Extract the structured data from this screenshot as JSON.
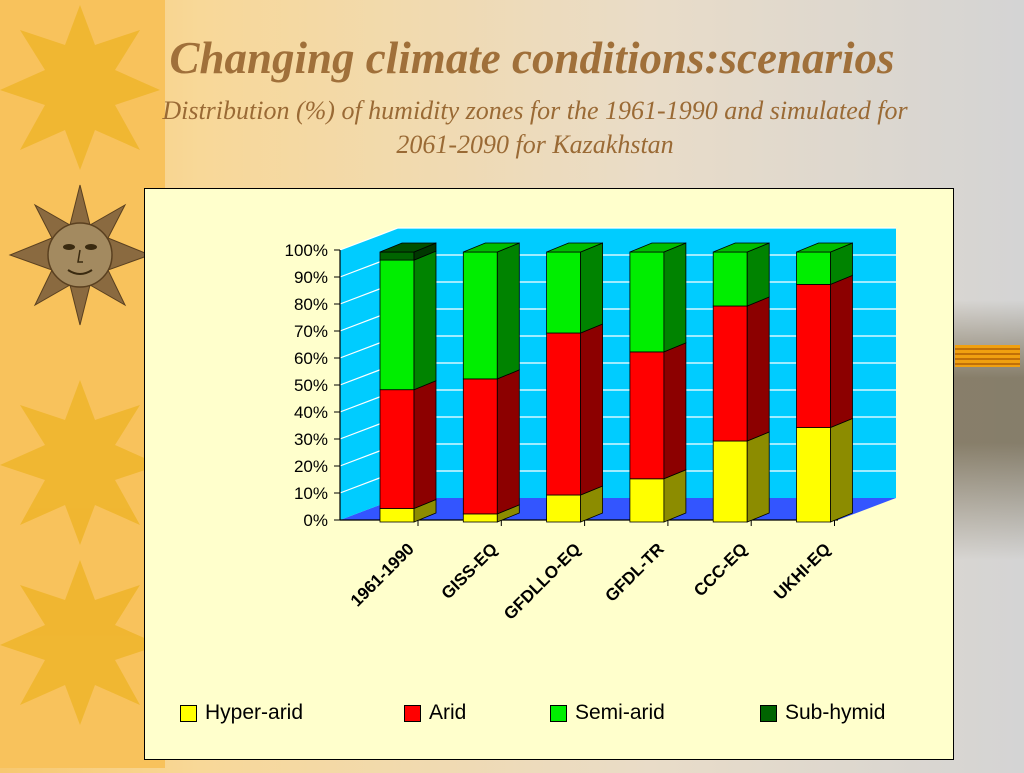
{
  "slide": {
    "title": "Changing climate conditions:scenarios",
    "subtitle_line1": "Distribution (%) of humidity zones for the 1961-1990 and simulated for",
    "subtitle_line2": "2061-2090 for Kazakhstan"
  },
  "colors": {
    "hyper_arid": "#ffff00",
    "arid": "#ff0000",
    "semi_arid": "#00ee00",
    "sub_humid": "#006400",
    "back_wall": "#00ccff",
    "floor": "#3355ff"
  },
  "chart_data": {
    "type": "bar",
    "stacked": true,
    "three_d": true,
    "categories": [
      "1961-1990",
      "GISS-EQ",
      "GFDLLO-EQ",
      "GFDL-TR",
      "CCC-EQ",
      "UKHI-EQ"
    ],
    "series": [
      {
        "name": "Hyper-arid",
        "values": [
          5,
          3,
          10,
          16,
          30,
          35
        ]
      },
      {
        "name": "Arid",
        "values": [
          44,
          50,
          60,
          47,
          50,
          53
        ]
      },
      {
        "name": "Semi-arid",
        "values": [
          48,
          47,
          30,
          37,
          20,
          12
        ]
      },
      {
        "name": "Sub-hymid",
        "values": [
          3,
          0,
          0,
          0,
          0,
          0
        ]
      }
    ],
    "ylim": [
      0,
      100
    ],
    "yticks": [
      "0%",
      "10%",
      "20%",
      "30%",
      "40%",
      "50%",
      "60%",
      "70%",
      "80%",
      "90%",
      "100%"
    ],
    "grid": true,
    "legend_position": "bottom"
  }
}
